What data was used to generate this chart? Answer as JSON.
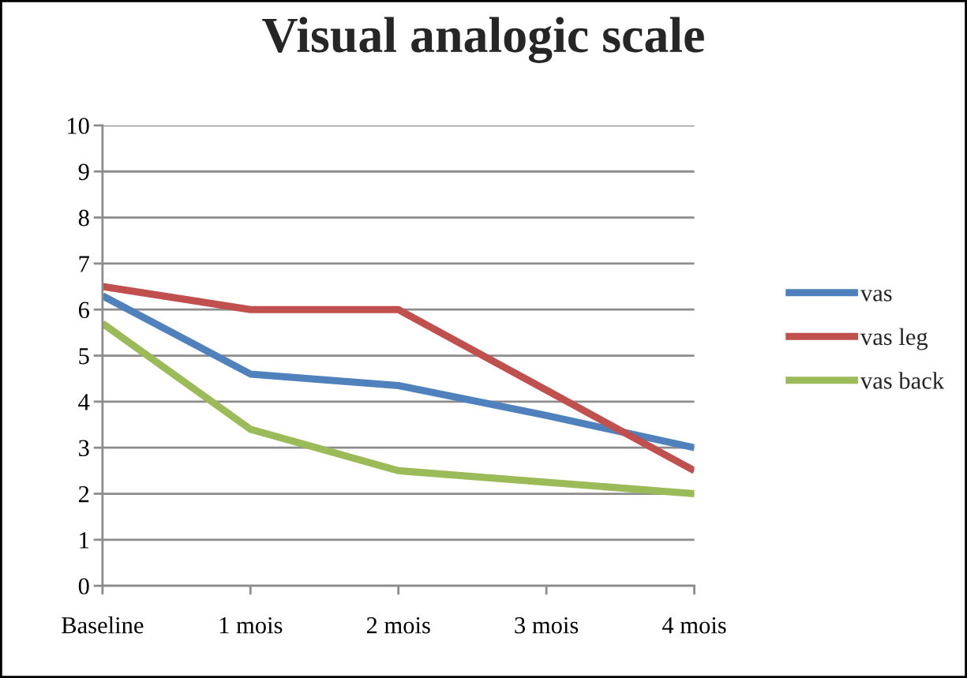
{
  "chart_data": {
    "type": "line",
    "title": "Visual analogic scale",
    "categories": [
      "Baseline",
      "1 mois",
      "2 mois",
      "3 mois",
      "4 mois"
    ],
    "series": [
      {
        "name": "vas",
        "color": "#4f81bd",
        "values": [
          6.3,
          4.6,
          4.35,
          3.7,
          3.0
        ]
      },
      {
        "name": "vas leg",
        "color": "#c0504d",
        "values": [
          6.5,
          6.0,
          6.0,
          4.25,
          2.5
        ]
      },
      {
        "name": "vas back",
        "color": "#9bbb59",
        "values": [
          5.7,
          3.4,
          2.5,
          2.25,
          2.0
        ]
      }
    ],
    "ylim": [
      0,
      10
    ],
    "yticks": [
      0,
      1,
      2,
      3,
      4,
      5,
      6,
      7,
      8,
      9,
      10
    ],
    "grid": "y",
    "legend": "right",
    "marker": "none",
    "line_style": "solid"
  }
}
